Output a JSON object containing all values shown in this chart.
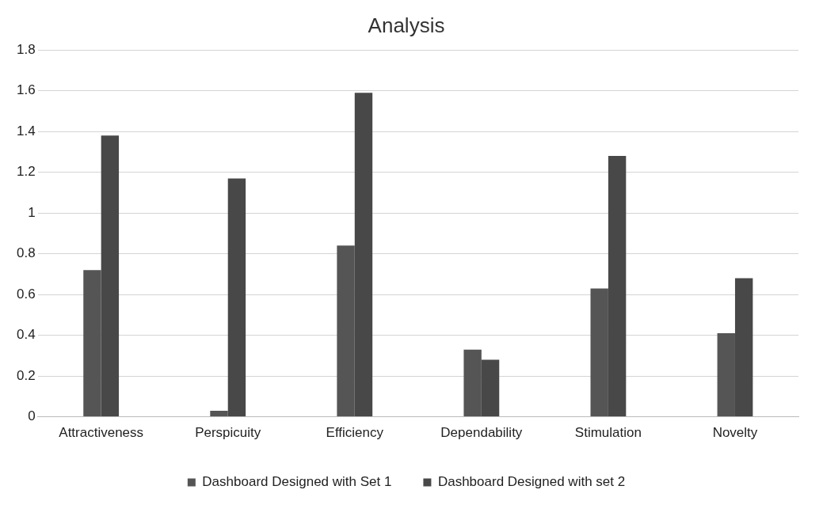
{
  "chart_data": {
    "type": "bar",
    "title": "Analysis",
    "categories": [
      "Attractiveness",
      "Perspicuity",
      "Efficiency",
      "Dependability",
      "Stimulation",
      "Novelty"
    ],
    "series": [
      {
        "name": "Dashboard Designed with Set 1",
        "color": "#555555",
        "values": [
          0.72,
          0.03,
          0.84,
          0.33,
          0.63,
          0.41
        ]
      },
      {
        "name": "Dashboard Designed with set 2",
        "color": "#484848",
        "values": [
          1.38,
          1.17,
          1.59,
          0.28,
          1.28,
          0.68
        ]
      }
    ],
    "ylim": [
      0,
      1.8
    ],
    "yticks": [
      0,
      0.2,
      0.4,
      0.6,
      0.8,
      1,
      1.2,
      1.4,
      1.6,
      1.8
    ],
    "grid": "y",
    "legend": "bottom"
  }
}
